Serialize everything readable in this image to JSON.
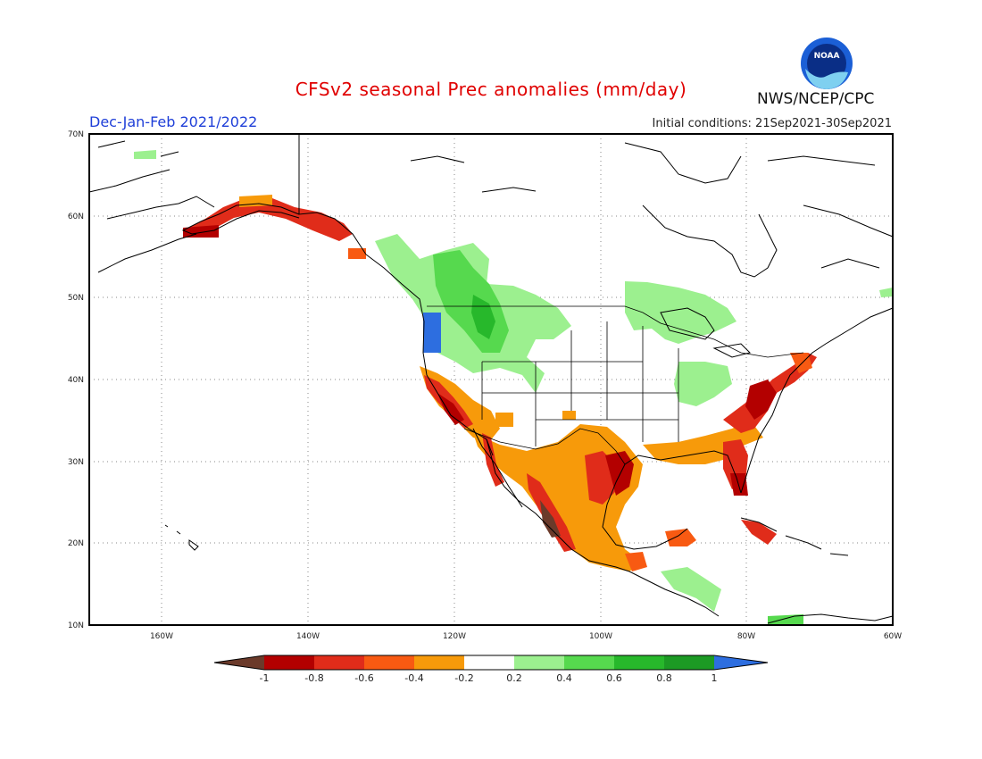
{
  "header": {
    "title": "CFSv2 seasonal Prec anomalies (mm/day)",
    "season": "Dec-Jan-Feb 2021/2022",
    "initial_conditions": "Initial conditions: 21Sep2021-30Sep2021",
    "agency": "NWS/NCEP/CPC",
    "logo_text": "NOAA"
  },
  "map": {
    "region": "North America",
    "lat_ticks": [
      "70N",
      "60N",
      "50N",
      "40N",
      "30N",
      "20N",
      "10N"
    ],
    "lon_ticks": [
      "160W",
      "140W",
      "120W",
      "100W",
      "80W",
      "60W"
    ],
    "ocean_color": "#ffffff",
    "coast_color": "#000000"
  },
  "colorbar": {
    "labels": [
      "-1",
      "-0.8",
      "-0.6",
      "-0.4",
      "-0.2",
      "0.2",
      "0.4",
      "0.6",
      "0.8",
      "1"
    ],
    "colors": [
      "#6b3a2a",
      "#b30000",
      "#e02c1a",
      "#f85a12",
      "#f79a0a",
      "#ffffff",
      "#9cf08f",
      "#56d94e",
      "#27b82b",
      "#1c9a24",
      "#2d6ee0"
    ]
  }
}
